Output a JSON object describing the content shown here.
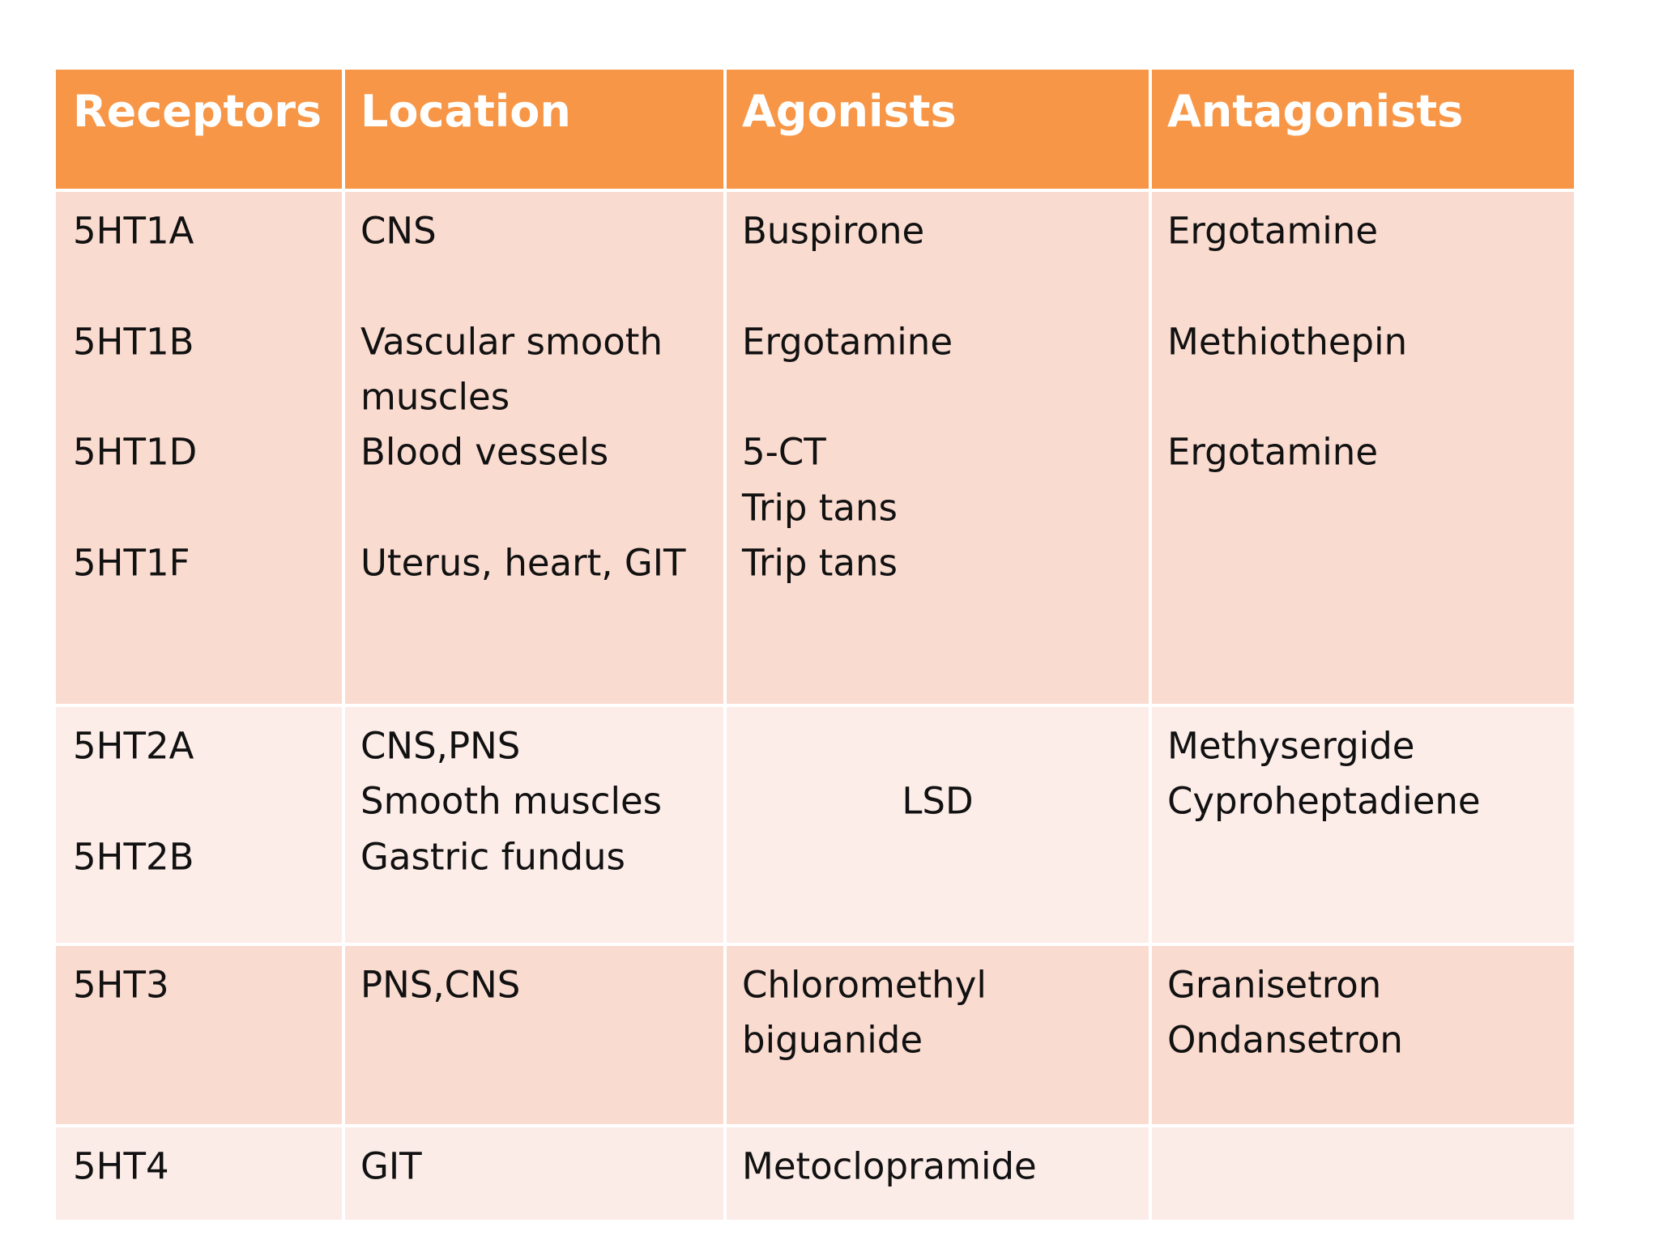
{
  "table": {
    "headers": [
      "Receptors",
      "Location",
      "Agonists",
      "Antagonists"
    ],
    "rows": [
      [
        [
          "5HT1A",
          "5HT1B",
          "5HT1D",
          "5HT1F"
        ],
        [
          "CNS",
          "Vascular smooth",
          "muscles",
          "Blood vessels",
          "Uterus, heart, GIT"
        ],
        [
          "Buspirone",
          "Ergotamine",
          "5-CT",
          "Trip tans",
          "Trip tans"
        ],
        [
          "Ergotamine",
          "Methiothepin",
          "Ergotamine"
        ]
      ],
      [
        [
          "5HT2A",
          "5HT2B"
        ],
        [
          "CNS,PNS",
          "Smooth muscles",
          "Gastric fundus"
        ],
        [
          "LSD"
        ],
        [
          "Methysergide",
          "Cyproheptadiene"
        ]
      ],
      [
        [
          "5HT3"
        ],
        [
          "PNS,CNS"
        ],
        [
          "Chloromethyl",
          "biguanide"
        ],
        [
          "Granisetron",
          "Ondansetron"
        ]
      ],
      [
        [
          "5HT4"
        ],
        [
          "GIT"
        ],
        [
          "Metoclopramide"
        ],
        []
      ]
    ]
  }
}
